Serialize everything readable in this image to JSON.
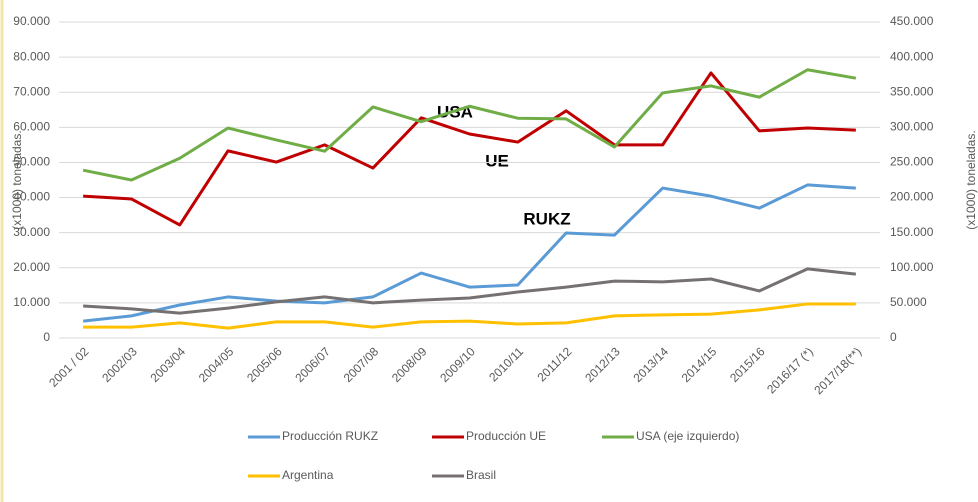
{
  "chart_data": {
    "type": "line",
    "categories": [
      "2001 / 02",
      "2002/03",
      "2003/04",
      "2004/05",
      "2005/06",
      "2006/07",
      "2007/08",
      "2008/09",
      "2009/10",
      "2010/11",
      "2011/12",
      "2012/13",
      "2013/14",
      "2014/15",
      "2015/16",
      "2016/17 (*)",
      "2017/18(**)"
    ],
    "ylabel": "(x1000) toneladas.",
    "y2label": "(x1000) toneladas.",
    "ylim": [
      0,
      90000
    ],
    "yticks": [
      0,
      {
        "value": 10000,
        "label": "10.000"
      },
      {
        "value": 20000,
        "label": "20.000"
      },
      {
        "value": 30000,
        "label": "30.000"
      },
      {
        "value": 40000,
        "label": "40.000"
      },
      {
        "value": 50000,
        "label": "50.000"
      },
      {
        "value": 60000,
        "label": "60.000"
      },
      {
        "value": 70000,
        "label": "70.000"
      },
      {
        "value": 80000,
        "label": "80.000"
      },
      {
        "value": 90000,
        "label": "90.000"
      }
    ],
    "y2lim": [
      0,
      450000
    ],
    "y2ticks": [
      0,
      {
        "value": 50000,
        "label": "50.000"
      },
      {
        "value": 100000,
        "label": "100.000"
      },
      {
        "value": 150000,
        "label": "150.000"
      },
      {
        "value": 200000,
        "label": "200.000"
      },
      {
        "value": 250000,
        "label": "250.000"
      },
      {
        "value": 300000,
        "label": "300.000"
      },
      {
        "value": 350000,
        "label": "350.000"
      },
      {
        "value": 400000,
        "label": "400.000"
      },
      {
        "value": 450000,
        "label": "450.000"
      }
    ],
    "grid": true,
    "series": [
      {
        "name": "Producción RUKZ",
        "color": "#5b9bd5",
        "values": [
          4800,
          6300,
          9400,
          11700,
          10500,
          10000,
          11700,
          18500,
          14500,
          15100,
          29900,
          29300,
          42700,
          40400,
          37000,
          43600,
          42700
        ]
      },
      {
        "name": "Producción UE",
        "color": "#c00000",
        "values": [
          40400,
          39600,
          32200,
          53300,
          50100,
          55000,
          48400,
          62700,
          58100,
          55800,
          64700,
          55000,
          55000,
          75500,
          59000,
          59800,
          59200
        ]
      },
      {
        "name": "USA (eje izquierdo)",
        "color": "#70ad47",
        "axis": "y2",
        "values": [
          239000,
          225000,
          256000,
          299000,
          282000,
          266000,
          329000,
          308000,
          330000,
          313000,
          312000,
          272000,
          349000,
          359000,
          343000,
          382000,
          370000
        ]
      },
      {
        "name": "Argentina",
        "color": "#ffc000",
        "values": [
          3100,
          3100,
          4300,
          2800,
          4600,
          4600,
          3100,
          4600,
          4800,
          4000,
          4300,
          6300,
          6600,
          6800,
          8000,
          9700,
          9700
        ]
      },
      {
        "name": "Brasil",
        "color": "#767171",
        "values": [
          9100,
          8300,
          7100,
          8500,
          10300,
          11700,
          10000,
          10800,
          11400,
          13100,
          14500,
          16200,
          16000,
          16800,
          13400,
          19700,
          18200
        ]
      }
    ],
    "annotations": [
      "USA",
      "UE",
      "RUKZ"
    ]
  }
}
